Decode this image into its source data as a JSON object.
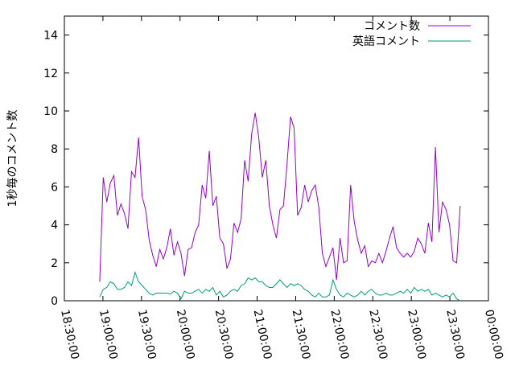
{
  "chart_data": {
    "type": "line",
    "y_label": "1秒毎のコメント数",
    "x": [
      68250,
      68415,
      68580,
      68745,
      68910,
      69075,
      69240,
      69405,
      69570,
      69735,
      69900,
      70065,
      70230,
      70395,
      70560,
      70725,
      70890,
      71055,
      71220,
      71385,
      71550,
      71715,
      71880,
      72045,
      72210,
      72375,
      72540,
      72705,
      72870,
      73035,
      73200,
      73365,
      73530,
      73695,
      73860,
      74025,
      74190,
      74355,
      74520,
      74685,
      74850,
      75015,
      75180,
      75345,
      75510,
      75675,
      75840,
      76005,
      76170,
      76335,
      76500,
      76665,
      76830,
      76995,
      77160,
      77325,
      77490,
      77655,
      77820,
      77985,
      78150,
      78315,
      78480,
      78645,
      78810,
      78975,
      79140,
      79305,
      79470,
      79635,
      79800,
      79965,
      80130,
      80295,
      80460,
      80625,
      80790,
      80955,
      81120,
      81285,
      81450,
      81615,
      81780,
      81945,
      82110,
      82275,
      82440,
      82605,
      82770,
      82935,
      83100,
      83265,
      83430,
      83595,
      83760,
      83925,
      84090,
      84255,
      84420,
      84585,
      84750,
      84915,
      85080
    ],
    "series": [
      {
        "name": "コメント数",
        "color": "#9400d3",
        "values": [
          1.0,
          6.5,
          5.2,
          6.2,
          6.6,
          4.5,
          5.1,
          4.6,
          3.8,
          6.8,
          6.5,
          8.6,
          5.5,
          4.8,
          3.2,
          2.4,
          1.8,
          2.7,
          2.2,
          2.8,
          3.8,
          2.4,
          3.1,
          2.5,
          1.3,
          2.7,
          2.8,
          3.6,
          4.0,
          6.1,
          5.4,
          7.9,
          5.0,
          5.5,
          3.3,
          3.0,
          1.7,
          2.2,
          4.1,
          3.6,
          4.3,
          7.4,
          6.3,
          8.8,
          9.9,
          8.6,
          6.5,
          7.4,
          5.0,
          4.0,
          3.3,
          4.8,
          5.0,
          7.2,
          9.7,
          9.1,
          4.5,
          4.9,
          6.1,
          5.2,
          5.8,
          6.1,
          4.9,
          2.5,
          1.8,
          2.3,
          2.8,
          1.1,
          3.3,
          2.0,
          2.1,
          6.1,
          4.2,
          3.2,
          2.5,
          2.9,
          1.8,
          2.1,
          2.0,
          2.5,
          2.0,
          2.6,
          3.3,
          3.9,
          2.8,
          2.5,
          2.3,
          2.5,
          2.3,
          2.6,
          3.3,
          3.0,
          2.5,
          4.1,
          3.1,
          8.1,
          3.6,
          5.2,
          4.8,
          4.0,
          2.1,
          2.0,
          5.0
        ]
      },
      {
        "name": "英語コメント",
        "color": "#009e73",
        "values": [
          0.2,
          0.6,
          0.7,
          1.0,
          0.9,
          0.6,
          0.6,
          0.7,
          1.0,
          0.8,
          1.5,
          1.0,
          0.8,
          0.6,
          0.4,
          0.3,
          0.4,
          0.4,
          0.4,
          0.4,
          0.35,
          0.5,
          0.4,
          0.1,
          0.5,
          0.4,
          0.4,
          0.5,
          0.6,
          0.4,
          0.6,
          0.5,
          0.7,
          0.3,
          0.5,
          0.2,
          0.3,
          0.5,
          0.6,
          0.5,
          0.8,
          0.9,
          1.2,
          1.1,
          1.2,
          1.0,
          1.0,
          0.8,
          0.7,
          0.7,
          0.9,
          1.1,
          0.9,
          0.7,
          0.9,
          0.8,
          0.9,
          0.8,
          0.6,
          0.5,
          0.3,
          0.2,
          0.4,
          0.2,
          0.2,
          0.3,
          1.1,
          0.6,
          0.3,
          0.2,
          0.4,
          0.3,
          0.2,
          0.3,
          0.5,
          0.3,
          0.5,
          0.6,
          0.4,
          0.3,
          0.3,
          0.4,
          0.3,
          0.3,
          0.4,
          0.5,
          0.4,
          0.6,
          0.4,
          0.7,
          0.5,
          0.6,
          0.5,
          0.6,
          0.3,
          0.4,
          0.3,
          0.2,
          0.3,
          0.2,
          0.4,
          0.1,
          0.0
        ]
      }
    ],
    "xlim": [
      66600,
      86400
    ],
    "xticks": [
      {
        "value": 66600,
        "label": "18:30:00"
      },
      {
        "value": 68400,
        "label": "19:00:00"
      },
      {
        "value": 70200,
        "label": "19:30:00"
      },
      {
        "value": 72000,
        "label": "20:00:00"
      },
      {
        "value": 73800,
        "label": "20:30:00"
      },
      {
        "value": 75600,
        "label": "21:00:00"
      },
      {
        "value": 77400,
        "label": "21:30:00"
      },
      {
        "value": 79200,
        "label": "22:00:00"
      },
      {
        "value": 81000,
        "label": "22:30:00"
      },
      {
        "value": 82800,
        "label": "23:00:00"
      },
      {
        "value": 84600,
        "label": "23:30:00"
      },
      {
        "value": 86400,
        "label": "00:00:00"
      }
    ],
    "ylim": [
      0,
      15
    ],
    "yticks": [
      0,
      2,
      4,
      6,
      8,
      10,
      12,
      14
    ],
    "legend": "top-right"
  }
}
